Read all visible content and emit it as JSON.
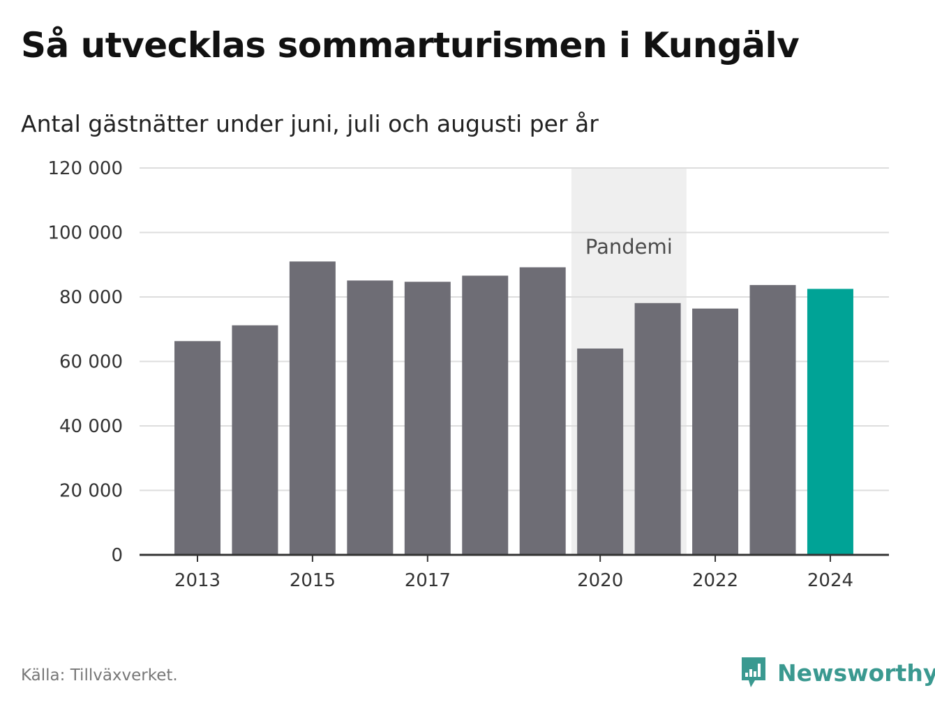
{
  "title": "Så utvecklas sommarturismen i Kungälv",
  "subtitle": "Antal gästnätter under juni, juli och augusti per år",
  "source": "Källa: Tillväxverket.",
  "brand": {
    "name": "Newsworthy",
    "icon": "newsworthy-logo-icon",
    "color": "#3a9990"
  },
  "chart_data": {
    "type": "bar",
    "x": [
      2013,
      2014,
      2015,
      2016,
      2017,
      2018,
      2019,
      2020,
      2021,
      2022,
      2023,
      2024
    ],
    "values": [
      66300,
      71200,
      91000,
      85100,
      84700,
      86600,
      89200,
      64000,
      78100,
      76400,
      83700,
      82500
    ],
    "x_tick_labels": [
      "2013",
      "2015",
      "2017",
      "2020",
      "2022",
      "2024"
    ],
    "y_tick_labels": [
      "0",
      "20 000",
      "40 000",
      "60 000",
      "80 000",
      "100 000",
      "120 000"
    ],
    "ylim": [
      0,
      120000
    ],
    "y_ticks": [
      0,
      20000,
      40000,
      60000,
      80000,
      100000,
      120000
    ],
    "grid": true,
    "highlight": {
      "x": 2024,
      "color": "#00a396"
    },
    "bar_color": "#6e6d75",
    "annotation_band": {
      "label": "Pandemi",
      "from": 2020,
      "to": 2021,
      "color": "#efefef"
    },
    "xlabel": "",
    "ylabel": ""
  }
}
